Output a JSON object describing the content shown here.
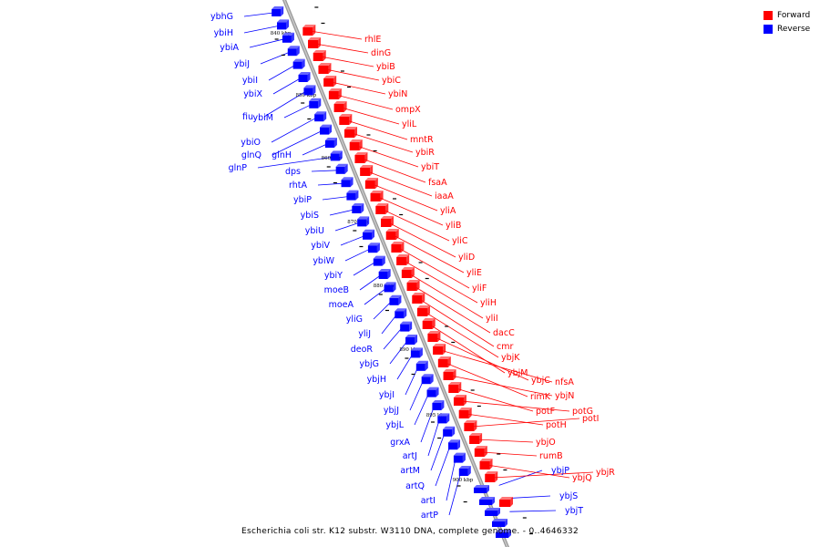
{
  "colors": {
    "forward": "#ff0000",
    "reverse": "#0000ff",
    "backbone": "#aaaaaa"
  },
  "legend": [
    {
      "label": "Forward",
      "color": "#ff0000"
    },
    {
      "label": "Reverse",
      "color": "#0000ff"
    }
  ],
  "caption": "Escherichia coli str. K12 substr. W3110 DNA, complete genome. - 0..4646332",
  "ticks": [
    "840 kbp",
    "845 kbp",
    "850 kbp",
    "855 kbp",
    "860 kbp",
    "865 kbp",
    "870 kbp",
    "875 kbp",
    "880 kbp",
    "885 kbp",
    "890 kbp",
    "895 kbp",
    "900 kbp"
  ],
  "reverse_genes": [
    "ybhG",
    "ybiH",
    "ybiA",
    "ybiJ",
    "ybiI",
    "ybiX",
    "fiu",
    "ybiM",
    "ybiO",
    "glnQ",
    "glnH",
    "glnP",
    "dps",
    "rhtA",
    "ybiP",
    "ybiS",
    "ybiU",
    "ybiV",
    "ybiW",
    "ybiY",
    "moeB",
    "moeA",
    "yliG",
    "yliJ",
    "deoR",
    "ybjG",
    "ybjH",
    "ybjI",
    "ybjJ",
    "ybjL",
    "grxA",
    "artJ",
    "artM",
    "artQ",
    "artI",
    "artP",
    "ybjP",
    "ybjS",
    "ybjT"
  ],
  "forward_genes": [
    "rhlE",
    "dinG",
    "ybiB",
    "ybiC",
    "ybiN",
    "ompX",
    "yliL",
    "mntR",
    "ybiR",
    "ybiT",
    "fsaA",
    "iaaA",
    "yliA",
    "yliB",
    "yliC",
    "yliD",
    "yliE",
    "yliF",
    "yliH",
    "yliI",
    "dacC",
    "cmr",
    "ybjK",
    "ybjM",
    "ybjC",
    "nfsA",
    "rimK",
    "ybjN",
    "potF",
    "potG",
    "potH",
    "potI",
    "ybjO",
    "rumB",
    "ybjQ",
    "ybjR"
  ]
}
